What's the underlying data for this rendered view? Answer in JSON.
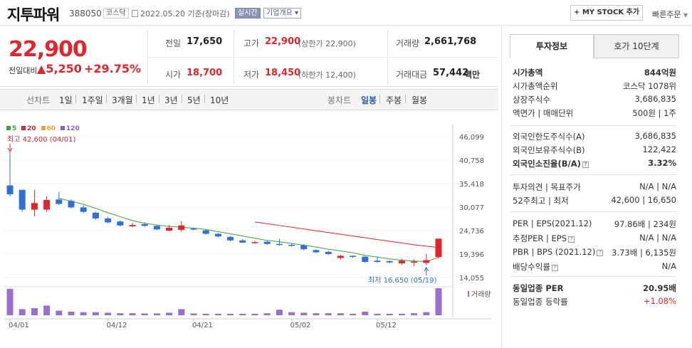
{
  "header": {
    "name": "지투파워",
    "code": "388050",
    "market_tag": "코스닥",
    "date": "2022.05.20",
    "date_note": "기준(장마감)",
    "live_tag": "실시간",
    "info_tag": "기업개요",
    "mystock_label": "+ MY STOCK 추가",
    "quick_order_label": "빠른주문"
  },
  "quote": {
    "price": "22,900",
    "prev_label": "전일대비",
    "change": "5,250",
    "change_pct": "+29.75%",
    "prev_close_label": "전일",
    "prev_close": "17,650",
    "high_label": "고가",
    "high": "22,900",
    "upper_limit": "(상한가 22,900)",
    "volume_label": "거래량",
    "volume": "2,661,768",
    "open_label": "시가",
    "open": "18,700",
    "low_label": "저가",
    "low": "18,450",
    "lower_limit": "(하한가 12,400)",
    "amount_label": "거래대금",
    "amount": "57,442",
    "amount_unit": "백만"
  },
  "toolbar": {
    "line_label": "선차트",
    "periods": [
      "1일",
      "1주일",
      "3개월",
      "1년",
      "3년",
      "5년",
      "10년"
    ],
    "candle_label": "봉차트",
    "candle_periods": [
      "일봉",
      "주봉",
      "월봉"
    ]
  },
  "chart_data": {
    "type": "candlestick",
    "legend": [
      {
        "name": "5",
        "color": "#3aa635"
      },
      {
        "name": "20",
        "color": "#e0252c"
      },
      {
        "name": "60",
        "color": "#e8a33a"
      },
      {
        "name": "120",
        "color": "#8e5fc2"
      }
    ],
    "y_ticks": [
      "46,099",
      "40,758",
      "35,418",
      "30,077",
      "24,736",
      "19,396",
      "14,055"
    ],
    "x_labels": [
      "04/01",
      "04/12",
      "04/21",
      "05/02",
      "05/12"
    ],
    "high_annotation": "최고 42,600 (04/01)",
    "low_annotation": "최저 16,650 (05/19)",
    "volume_label": "거래량",
    "ylim": [
      14055,
      46099
    ],
    "candles": [
      {
        "date": "04/01",
        "o": 35000,
        "c": 33000,
        "h": 42600,
        "l": 32500,
        "v": 2600000
      },
      {
        "date": "04/04",
        "o": 34000,
        "c": 29500,
        "h": 34000,
        "l": 29000,
        "v": 600000
      },
      {
        "date": "04/05",
        "o": 29500,
        "c": 31000,
        "h": 34000,
        "l": 28000,
        "v": 700000
      },
      {
        "date": "04/06",
        "o": 29500,
        "c": 31700,
        "h": 32500,
        "l": 29000,
        "v": 950000
      },
      {
        "date": "04/07",
        "o": 31800,
        "c": 30800,
        "h": 33500,
        "l": 30500,
        "v": 450000
      },
      {
        "date": "04/08",
        "o": 31500,
        "c": 30000,
        "h": 31900,
        "l": 29800,
        "v": 350000
      },
      {
        "date": "04/11",
        "o": 30000,
        "c": 29000,
        "h": 30500,
        "l": 28700,
        "v": 300000
      },
      {
        "date": "04/12",
        "o": 28800,
        "c": 27500,
        "h": 29000,
        "l": 27200,
        "v": 300000
      },
      {
        "date": "04/13",
        "o": 27500,
        "c": 26600,
        "h": 27900,
        "l": 26400,
        "v": 250000
      },
      {
        "date": "04/14",
        "o": 26800,
        "c": 25900,
        "h": 27000,
        "l": 25700,
        "v": 200000
      },
      {
        "date": "04/15",
        "o": 25700,
        "c": 26000,
        "h": 26500,
        "l": 25500,
        "v": 200000
      },
      {
        "date": "04/18",
        "o": 26200,
        "c": 25800,
        "h": 26600,
        "l": 25600,
        "v": 180000
      },
      {
        "date": "04/19",
        "o": 25800,
        "c": 25000,
        "h": 26000,
        "l": 24800,
        "v": 180000
      },
      {
        "date": "04/20",
        "o": 24700,
        "c": 25400,
        "h": 26000,
        "l": 24600,
        "v": 250000
      },
      {
        "date": "04/21",
        "o": 24900,
        "c": 25900,
        "h": 26900,
        "l": 24500,
        "v": 600000
      },
      {
        "date": "04/22",
        "o": 25200,
        "c": 25000,
        "h": 25400,
        "l": 24800,
        "v": 180000
      },
      {
        "date": "04/25",
        "o": 24800,
        "c": 24000,
        "h": 25000,
        "l": 23800,
        "v": 150000
      },
      {
        "date": "04/26",
        "o": 24000,
        "c": 23400,
        "h": 24200,
        "l": 23200,
        "v": 150000
      },
      {
        "date": "04/27",
        "o": 23300,
        "c": 22500,
        "h": 23500,
        "l": 22300,
        "v": 150000
      },
      {
        "date": "04/28",
        "o": 22500,
        "c": 22000,
        "h": 22800,
        "l": 21900,
        "v": 150000
      },
      {
        "date": "04/29",
        "o": 22000,
        "c": 22100,
        "h": 22400,
        "l": 21800,
        "v": 150000
      },
      {
        "date": "05/02",
        "o": 22200,
        "c": 21700,
        "h": 22400,
        "l": 21500,
        "v": 200000
      },
      {
        "date": "05/03",
        "o": 21700,
        "c": 21500,
        "h": 22900,
        "l": 21300,
        "v": 550000
      },
      {
        "date": "05/04",
        "o": 21500,
        "c": 21300,
        "h": 21800,
        "l": 21100,
        "v": 300000
      },
      {
        "date": "05/06",
        "o": 21400,
        "c": 20500,
        "h": 21700,
        "l": 20300,
        "v": 250000
      },
      {
        "date": "05/09",
        "o": 20300,
        "c": 19800,
        "h": 20500,
        "l": 19600,
        "v": 200000
      },
      {
        "date": "05/10",
        "o": 19900,
        "c": 19400,
        "h": 20100,
        "l": 19200,
        "v": 200000
      },
      {
        "date": "05/11",
        "o": 18500,
        "c": 19000,
        "h": 19200,
        "l": 18200,
        "v": 200000
      },
      {
        "date": "05/12",
        "o": 19000,
        "c": 18800,
        "h": 19100,
        "l": 18500,
        "v": 150000
      },
      {
        "date": "05/13",
        "o": 18800,
        "c": 17600,
        "h": 19000,
        "l": 17400,
        "v": 350000
      },
      {
        "date": "05/16",
        "o": 17900,
        "c": 17600,
        "h": 18900,
        "l": 17400,
        "v": 150000
      },
      {
        "date": "05/17",
        "o": 17800,
        "c": 17500,
        "h": 18000,
        "l": 17300,
        "v": 150000
      },
      {
        "date": "05/18",
        "o": 17300,
        "c": 17900,
        "h": 18300,
        "l": 17000,
        "v": 150000
      },
      {
        "date": "05/19",
        "o": 17600,
        "c": 17700,
        "h": 18200,
        "l": 16650,
        "v": 200000
      },
      {
        "date": "05/20",
        "o": 17400,
        "c": 18000,
        "h": 19400,
        "l": 16900,
        "v": 300000
      },
      {
        "date": "05/20b",
        "o": 18700,
        "c": 22900,
        "h": 22900,
        "l": 18450,
        "v": 2661768
      }
    ],
    "ma5": [
      null,
      null,
      null,
      null,
      32100,
      31400,
      30700,
      29800,
      28800,
      27900,
      27000,
      26400,
      26000,
      25700,
      25500,
      25300,
      25000,
      24500,
      24000,
      23500,
      23000,
      22500,
      22200,
      21800,
      21400,
      21000,
      20500,
      20100,
      19700,
      19100,
      18700,
      18300,
      18000,
      17800,
      17700,
      18600
    ],
    "ma20": [
      null,
      null,
      null,
      null,
      null,
      null,
      null,
      null,
      null,
      null,
      null,
      null,
      null,
      null,
      null,
      null,
      null,
      null,
      null,
      null,
      26700,
      26300,
      25900,
      25500,
      25100,
      24700,
      24300,
      23900,
      23500,
      23100,
      22700,
      22300,
      21900,
      21500,
      21200,
      20900
    ]
  },
  "side": {
    "tab_active": "투자정보",
    "tab_other": "호가 10단계",
    "rows1": [
      {
        "label": "시가총액",
        "value": "844억원",
        "bold": true
      },
      {
        "label": "시가총액순위",
        "value": "코스닥 1078위"
      },
      {
        "label": "상장주식수",
        "value": "3,686,835"
      },
      {
        "label": "액면가 | 매매단위",
        "value": "500원 | 1주"
      }
    ],
    "rows2": [
      {
        "label": "외국인한도주식수(A)",
        "value": "3,686,835"
      },
      {
        "label": "외국인보유주식수(B)",
        "value": "122,422"
      },
      {
        "label": "외국인소진율(B/A)",
        "value": "3.32%",
        "bold": true
      }
    ],
    "rows3": [
      {
        "label": "투자의견 | 목표주가",
        "value": "N/A | N/A"
      },
      {
        "label": "52주최고 | 최저",
        "value": "42,600 | 16,650"
      }
    ],
    "rows4": [
      {
        "label": "PER | EPS(2021.12)",
        "value": "97.86배 | 234원"
      },
      {
        "label": "추정PER | EPS",
        "value": "N/A | N/A"
      },
      {
        "label": "PBR | BPS (2021.12)",
        "value": "3.73배 | 6,135원"
      },
      {
        "label": "배당수익률",
        "value": "N/A"
      }
    ],
    "rows5": [
      {
        "label": "동일업종 PER",
        "value": "20.95배",
        "bold": true
      },
      {
        "label": "동일업종 등락률",
        "value": "+1.08%"
      }
    ]
  }
}
